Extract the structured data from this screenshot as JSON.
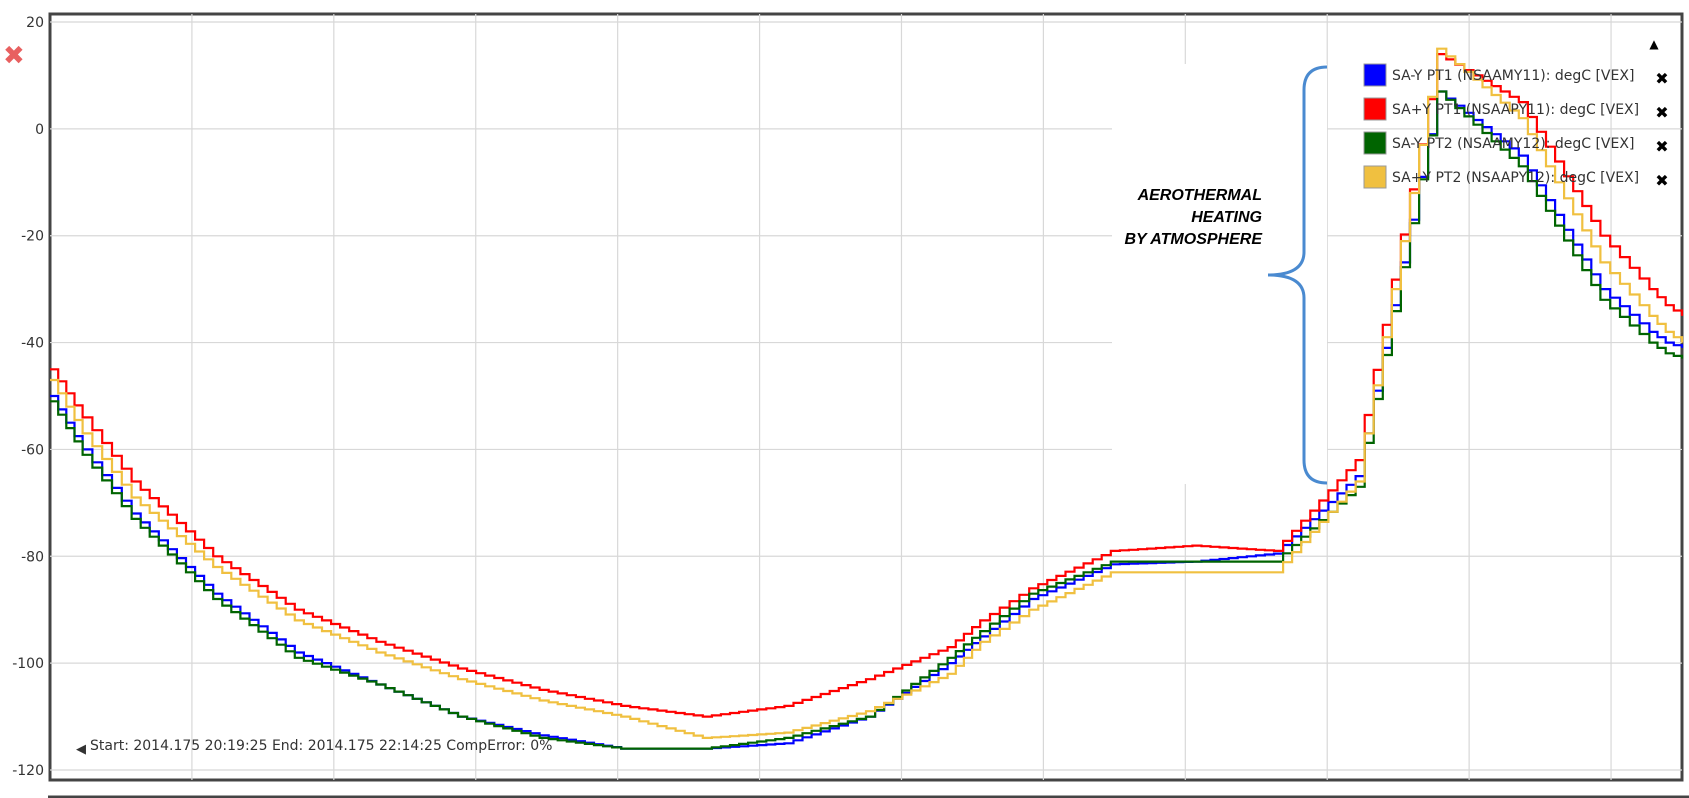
{
  "chart_data": {
    "type": "line",
    "ylim": [
      -120,
      20
    ],
    "yticks": [
      20,
      0,
      -20,
      -40,
      -60,
      -80,
      -100,
      -120
    ],
    "grid": true,
    "legend_position": "top-right",
    "x": [
      0,
      2,
      5,
      10,
      15,
      20,
      25,
      30,
      35,
      40,
      45,
      50,
      55,
      57,
      60,
      65,
      70,
      75,
      80,
      85,
      90,
      95,
      98,
      99,
      100
    ],
    "series": [
      {
        "name": "SA-Y PT1 (NSAAMY11): degC [VEX]",
        "color": "#0000ff",
        "values": [
          -50,
          -60,
          -72,
          -87,
          -98,
          -104,
          -110,
          -113.5,
          -116,
          -116,
          -115,
          -110,
          -100,
          -95,
          -88,
          -81.5,
          -81,
          -79.5,
          -65,
          7,
          -5,
          -30,
          -38,
          -40,
          -41
        ]
      },
      {
        "name": "SA+Y PT1 (NSAAPY11): degC [VEX]",
        "color": "#ff0000",
        "values": [
          -45,
          -54,
          -66,
          -80,
          -90,
          -96,
          -101,
          -105,
          -108,
          -110,
          -108,
          -103,
          -97,
          -92,
          -86,
          -79,
          -78,
          -79,
          -62,
          14,
          5,
          -20,
          -30,
          -33,
          -35
        ]
      },
      {
        "name": "SA-Y PT2 (NSAAMY12): degC [VEX]",
        "color": "#006400",
        "values": [
          -51,
          -61,
          -73,
          -88,
          -99,
          -104,
          -110,
          -114,
          -116,
          -116,
          -114,
          -110,
          -99,
          -94,
          -87,
          -81,
          -81,
          -81,
          -67,
          7,
          -7,
          -32,
          -40,
          -42,
          -43
        ]
      },
      {
        "name": "SA+Y PT2 (NSAAPY12): degC [VEX]",
        "color": "#f0c040",
        "values": [
          -47,
          -57,
          -69,
          -82,
          -92,
          -98,
          -103,
          -107,
          -110,
          -114,
          -113,
          -109,
          -102,
          -96,
          -90,
          -83,
          -83,
          -83,
          -66,
          15,
          2,
          -25,
          -35,
          -38,
          -40
        ]
      }
    ],
    "annotation": {
      "lines": [
        "AEROTHERMAL",
        "HEATING",
        "BY ATMOSPHERE"
      ],
      "bracket_color": "#4a8ad0"
    }
  },
  "status": {
    "text": "Start: 2014.175 20:19:25 End: 2014.175 22:14:25 CompError: 0%"
  },
  "icons": {
    "close": "close-icon",
    "collapse": "collapse-up-icon",
    "status_arrow": "caret-left-icon",
    "legend_remove": "remove-series-icon"
  },
  "colors": {
    "close_icon": "#e86060",
    "axis": "#444444",
    "grid": "#d8d8d8"
  }
}
